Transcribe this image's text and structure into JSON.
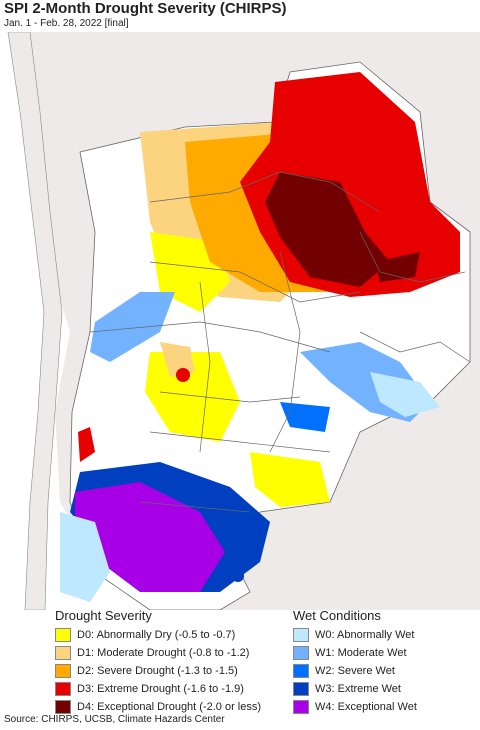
{
  "title": "SPI 2-Month Drought Severity (CHIRPS)",
  "subtitle": "Jan. 1 - Feb. 28, 2022 [final]",
  "legend": {
    "drought_heading": "Drought Severity",
    "wet_heading": "Wet Conditions",
    "drought": [
      {
        "label": "D0: Abnormally Dry (-0.5 to -0.7)",
        "color": "#ffff00"
      },
      {
        "label": "D1: Moderate Drought (-0.8 to -1.2)",
        "color": "#fcd37f"
      },
      {
        "label": "D2: Severe Drought (-1.3 to -1.5)",
        "color": "#ffaa00"
      },
      {
        "label": "D3: Extreme Drought (-1.6 to -1.9)",
        "color": "#e60000"
      },
      {
        "label": "D4: Exceptional Drought (-2.0 or less)",
        "color": "#730000"
      }
    ],
    "wet": [
      {
        "label": "W0: Abnormally Wet",
        "color": "#bee8ff"
      },
      {
        "label": "W1: Moderate Wet",
        "color": "#73b2ff"
      },
      {
        "label": "W2: Severe Wet",
        "color": "#0070ff"
      },
      {
        "label": "W3: Extreme Wet",
        "color": "#0040c0"
      },
      {
        "label": "W4: Exceptional Wet",
        "color": "#a800e6"
      }
    ]
  },
  "source": "Source: CHIRPS, UCSB, Climate Hazards Center"
}
